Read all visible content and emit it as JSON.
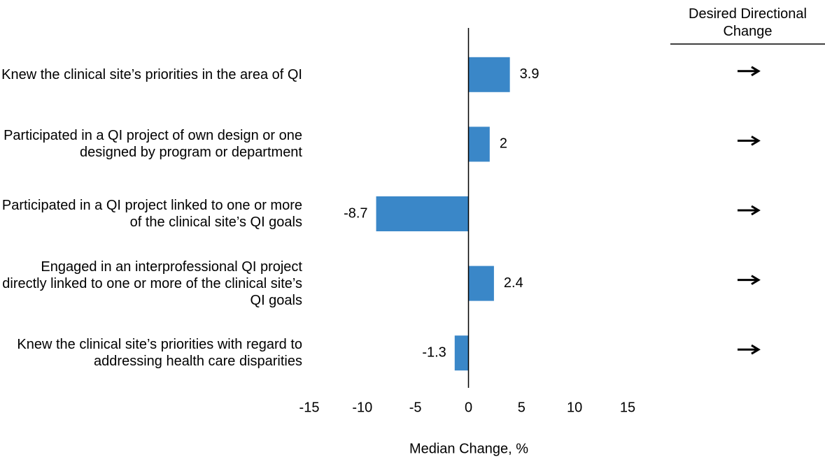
{
  "chart_data": {
    "type": "barh",
    "categories": [
      "Knew the clinical site’s priorities in the area of QI",
      "Participated in a QI project of own design or one designed by program or department",
      "Participated in a QI project linked to one or more of the clinical site’s QI goals",
      "Engaged in an interprofessional QI project directly linked to one or more of the clinical site’s QI goals",
      "Knew the clinical site’s priorities with regard to addressing health care disparities"
    ],
    "values": [
      3.9,
      2,
      -8.7,
      2.4,
      -1.3
    ],
    "color": "#3a87c8",
    "xlabel": "Median Change, %",
    "xlim": [
      -15,
      15
    ],
    "xticks": [
      -15,
      -10,
      -5,
      0,
      5,
      10,
      15
    ],
    "grid": false,
    "side_header": "Desired Directional Change"
  }
}
